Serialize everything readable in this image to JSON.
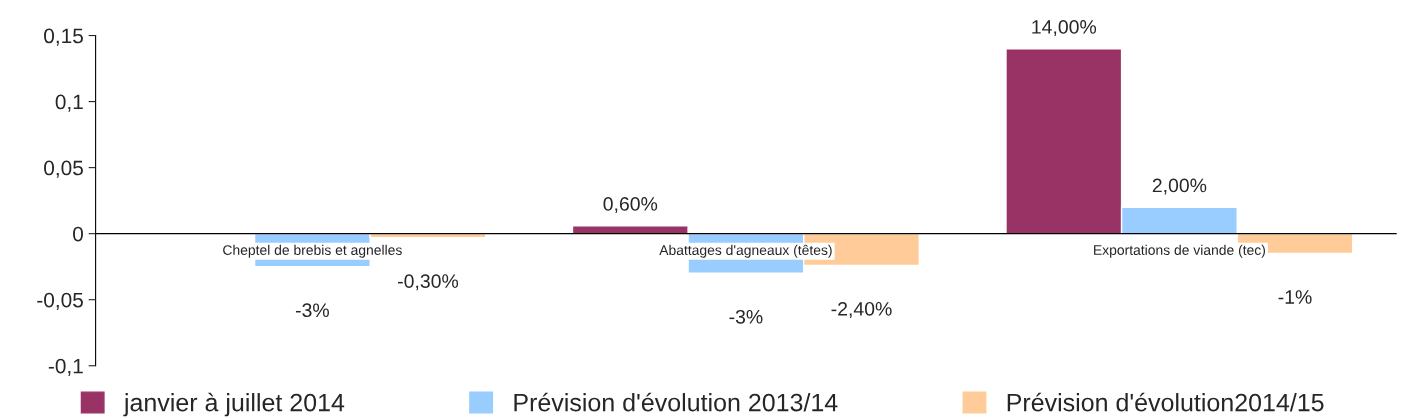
{
  "chart_data": {
    "type": "bar",
    "categories": [
      "Cheptel de brebis et agnelles",
      "Abattages d'agneaux (têtes)",
      "Exportations de viande (tec)"
    ],
    "series": [
      {
        "name": "janvier à juillet 2014",
        "color": "#993366",
        "values": [
          null,
          0.006,
          0.14
        ],
        "value_labels": [
          null,
          "0,60%",
          "14,00%"
        ]
      },
      {
        "name": "Prévision d'évolution 2013/14",
        "color": "#99ccff",
        "values": [
          -0.025,
          -0.03,
          0.02
        ],
        "value_labels": [
          "-3%",
          "-3%",
          "2,00%"
        ]
      },
      {
        "name": "Prévision d'évolution2014/15",
        "color": "#ffcc99",
        "values": [
          -0.003,
          -0.024,
          -0.015
        ],
        "value_labels": [
          "-0,30%",
          "-2,40%",
          "-1%"
        ]
      }
    ],
    "ylim": [
      -0.1,
      0.15
    ],
    "yticks": [
      {
        "value": -0.1,
        "label": "-0,1"
      },
      {
        "value": -0.05,
        "label": "-0,05"
      },
      {
        "value": 0,
        "label": "0"
      },
      {
        "value": 0.05,
        "label": "0,05"
      },
      {
        "value": 0.1,
        "label": "0,1"
      },
      {
        "value": 0.15,
        "label": "0,15"
      }
    ],
    "grid": false,
    "legend": "bottom"
  }
}
